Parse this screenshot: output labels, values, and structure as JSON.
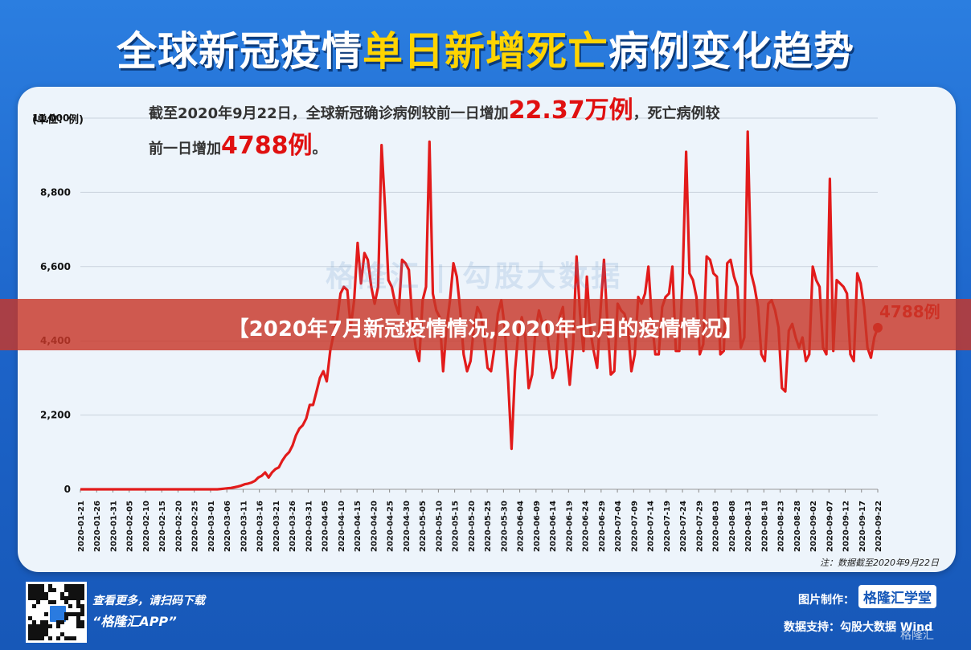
{
  "header": {
    "title_part1": "全球新冠疫情",
    "title_highlight": "单日新增死亡",
    "title_part2": "病例变化趋势"
  },
  "annotation": {
    "line1_prefix": "截至2020年9月22日，全球新冠确诊病例较前一日增加",
    "line1_red": "22.37万例",
    "line1_suffix": "，死亡病例较",
    "line2_prefix": "前一日增加",
    "line2_red": "4788例",
    "line2_suffix": "。"
  },
  "y_unit": "(单位：例)",
  "footnote": "注：数据截至2020年9月22日",
  "banner": "【2020年7月新冠疫情情况,2020年七月的疫情情况】",
  "watermark": "格隆汇  |  勾股大数据",
  "footer": {
    "scan_text": "查看更多，请扫码下载",
    "app_name": "“格隆汇APP”",
    "maker_label": "图片制作：",
    "maker_logo": "格隆汇学堂",
    "source_label": "数据支持：勾股大数据  Wind",
    "corner": "格隆汇"
  },
  "colors": {
    "line": "#e21b1b",
    "grid": "#c9d2dc",
    "banner": "#c83a2c"
  },
  "chart_data": {
    "type": "line",
    "title": "全球新冠疫情单日新增死亡病例变化趋势",
    "ylabel": "(单位：例)",
    "ylim": [
      0,
      11000
    ],
    "yticks": [
      "0",
      "2,200",
      "4,400",
      "6,600",
      "8,800",
      "11,000"
    ],
    "ytick_values": [
      0,
      2200,
      4400,
      6600,
      8800,
      11000
    ],
    "xtick_labels": [
      "2020-01-21",
      "2020-01-26",
      "2020-01-31",
      "2020-02-05",
      "2020-02-10",
      "2020-02-15",
      "2020-02-20",
      "2020-02-25",
      "2020-03-01",
      "2020-03-06",
      "2020-03-11",
      "2020-03-16",
      "2020-03-21",
      "2020-03-26",
      "2020-03-31",
      "2020-04-05",
      "2020-04-10",
      "2020-04-15",
      "2020-04-20",
      "2020-04-25",
      "2020-04-30",
      "2020-05-05",
      "2020-05-10",
      "2020-05-15",
      "2020-05-20",
      "2020-05-25",
      "2020-05-30",
      "2020-06-04",
      "2020-06-09",
      "2020-06-14",
      "2020-06-19",
      "2020-06-24",
      "2020-06-29",
      "2020-07-04",
      "2020-07-09",
      "2020-07-14",
      "2020-07-19",
      "2020-07-24",
      "2020-07-29",
      "2020-08-03",
      "2020-08-08",
      "2020-08-13",
      "2020-08-18",
      "2020-08-23",
      "2020-08-28",
      "2020-09-02",
      "2020-09-07",
      "2020-09-12",
      "2020-09-17",
      "2020-09-22"
    ],
    "last_point_label": "4788例",
    "series": [
      {
        "values": [
          0,
          0,
          0,
          0,
          0,
          0,
          0,
          0,
          0,
          0,
          0,
          0,
          0,
          0,
          0,
          0,
          0,
          0,
          0,
          0,
          0,
          0,
          0,
          0,
          0,
          0,
          0,
          0,
          0,
          0,
          0,
          0,
          0,
          0,
          0,
          0,
          0,
          0,
          0,
          0,
          0,
          10,
          20,
          30,
          40,
          60,
          80,
          110,
          150,
          170,
          200,
          250,
          350,
          400,
          500,
          350,
          500,
          600,
          650,
          850,
          1000,
          1100,
          1300,
          1600,
          1800,
          1900,
          2100,
          2500,
          2500,
          2900,
          3300,
          3500,
          3200,
          4100,
          4600,
          5000,
          5800,
          6000,
          5900,
          4800,
          5600,
          7300,
          6100,
          7000,
          6800,
          6000,
          5500,
          6000,
          10200,
          8400,
          6200,
          6000,
          5500,
          5200,
          6800,
          6700,
          6500,
          5000,
          4200,
          3800,
          5600,
          6000,
          10300,
          5800,
          5300,
          5100,
          3500,
          4800,
          5600,
          6700,
          6300,
          5300,
          4000,
          3500,
          3800,
          4800,
          5400,
          5200,
          4500,
          3600,
          3500,
          4200,
          5200,
          5600,
          4800,
          3200,
          1200,
          3500,
          4700,
          5100,
          4500,
          3000,
          3400,
          4700,
          5300,
          4900,
          5000,
          4100,
          3300,
          3600,
          5100,
          5400,
          4100,
          3100,
          4300,
          6900,
          5200,
          4100,
          6300,
          4700,
          4100,
          3600,
          5300,
          6800,
          4900,
          3400,
          3500,
          5500,
          5300,
          5200,
          4800,
          3500,
          4000,
          5700,
          5500,
          5800,
          6600,
          5000,
          4000,
          4000,
          5400,
          5700,
          5800,
          6600,
          4100,
          4100,
          6300,
          10000,
          6400,
          6200,
          5700,
          4000,
          4300,
          6900,
          6800,
          6400,
          6300,
          4000,
          4100,
          6700,
          6800,
          6300,
          6000,
          4200,
          4500,
          10600,
          6400,
          6000,
          5400,
          4000,
          3800,
          5500,
          5600,
          5300,
          4800,
          3000,
          2900,
          4700,
          4900,
          4500,
          4200,
          4500,
          3800,
          4000,
          6600,
          6200,
          6000,
          4200,
          4000,
          9200,
          4100,
          6200,
          6100,
          6000,
          5800,
          4000,
          3800,
          6400,
          6100,
          5400,
          4200,
          3900,
          4500,
          4788
        ]
      }
    ]
  }
}
